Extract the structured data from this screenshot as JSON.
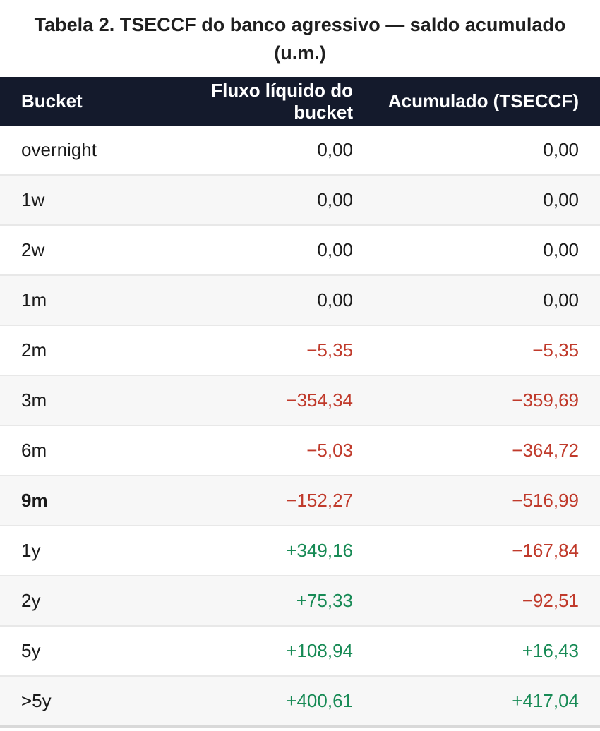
{
  "page": {
    "title_line1": "Tabela 2. TSECCF do banco agressivo — saldo acumulado",
    "title_line2": "(u.m.)"
  },
  "colors": {
    "header_bg": "#141a2c",
    "header_text": "#ffffff",
    "negative": "#c03a2b",
    "positive": "#178a55",
    "neutral_text": "#1a1a1a",
    "row_alt_bg": "#f7f7f7",
    "row_divider": "#e8e8e8",
    "bottom_border": "#d9d9d9"
  },
  "table": {
    "columns": [
      {
        "label": "Bucket"
      },
      {
        "label": "Fluxo líquido do bucket"
      },
      {
        "label": "Acumulado (TSECCF)"
      }
    ],
    "rows": [
      {
        "bucket": "overnight",
        "flow": "0,00",
        "acc": "0,00",
        "flow_tone": "zero",
        "acc_tone": "zero",
        "emphasis": false
      },
      {
        "bucket": "1w",
        "flow": "0,00",
        "acc": "0,00",
        "flow_tone": "zero",
        "acc_tone": "zero",
        "emphasis": false
      },
      {
        "bucket": "2w",
        "flow": "0,00",
        "acc": "0,00",
        "flow_tone": "zero",
        "acc_tone": "zero",
        "emphasis": false
      },
      {
        "bucket": "1m",
        "flow": "0,00",
        "acc": "0,00",
        "flow_tone": "zero",
        "acc_tone": "zero",
        "emphasis": false
      },
      {
        "bucket": "2m",
        "flow": "−5,35",
        "acc": "−5,35",
        "flow_tone": "negative",
        "acc_tone": "negative",
        "emphasis": false
      },
      {
        "bucket": "3m",
        "flow": "−354,34",
        "acc": "−359,69",
        "flow_tone": "negative",
        "acc_tone": "negative",
        "emphasis": false
      },
      {
        "bucket": "6m",
        "flow": "−5,03",
        "acc": "−364,72",
        "flow_tone": "negative",
        "acc_tone": "negative",
        "emphasis": false
      },
      {
        "bucket": "9m",
        "flow": "−152,27",
        "acc": "−516,99",
        "flow_tone": "negative",
        "acc_tone": "negative",
        "emphasis": true
      },
      {
        "bucket": "1y",
        "flow": "+349,16",
        "acc": "−167,84",
        "flow_tone": "positive",
        "acc_tone": "negative",
        "emphasis": false
      },
      {
        "bucket": "2y",
        "flow": "+75,33",
        "acc": "−92,51",
        "flow_tone": "positive",
        "acc_tone": "negative",
        "emphasis": false
      },
      {
        "bucket": "5y",
        "flow": "+108,94",
        "acc": "+16,43",
        "flow_tone": "positive",
        "acc_tone": "positive",
        "emphasis": false
      },
      {
        "bucket": ">5y",
        "flow": "+400,61",
        "acc": "+417,04",
        "flow_tone": "positive",
        "acc_tone": "positive",
        "emphasis": false
      }
    ]
  },
  "chart_data": {
    "type": "table",
    "title": "Tabela 2. TSECCF do banco agressivo — saldo acumulado (u.m.)",
    "columns": [
      "Bucket",
      "Fluxo líquido do bucket",
      "Acumulado (TSECCF)"
    ],
    "rows": [
      [
        "overnight",
        "0,00",
        "0,00"
      ],
      [
        "1w",
        "0,00",
        "0,00"
      ],
      [
        "2w",
        "0,00",
        "0,00"
      ],
      [
        "1m",
        "0,00",
        "0,00"
      ],
      [
        "2m",
        "−5,35",
        "−5,35"
      ],
      [
        "3m",
        "−354,34",
        "−359,69"
      ],
      [
        "6m",
        "−5,03",
        "−364,72"
      ],
      [
        "9m",
        "−152,27",
        "−516,99"
      ],
      [
        "1y",
        "+349,16",
        "−167,84"
      ],
      [
        "2y",
        "+75,33",
        "−92,51"
      ],
      [
        "5y",
        "+108,94",
        "+16,43"
      ],
      [
        ">5y",
        "+400,61",
        "+417,04"
      ]
    ],
    "numeric": {
      "buckets": [
        "overnight",
        "1w",
        "2w",
        "1m",
        "2m",
        "3m",
        "6m",
        "9m",
        "1y",
        "2y",
        "5y",
        ">5y"
      ],
      "fluxo_liquido": [
        0.0,
        0.0,
        0.0,
        0.0,
        -5.35,
        -354.34,
        -5.03,
        -152.27,
        349.16,
        75.33,
        108.94,
        400.61
      ],
      "acumulado": [
        0.0,
        0.0,
        0.0,
        0.0,
        -5.35,
        -359.69,
        -364.72,
        -516.99,
        -167.84,
        -92.51,
        16.43,
        417.04
      ]
    }
  }
}
